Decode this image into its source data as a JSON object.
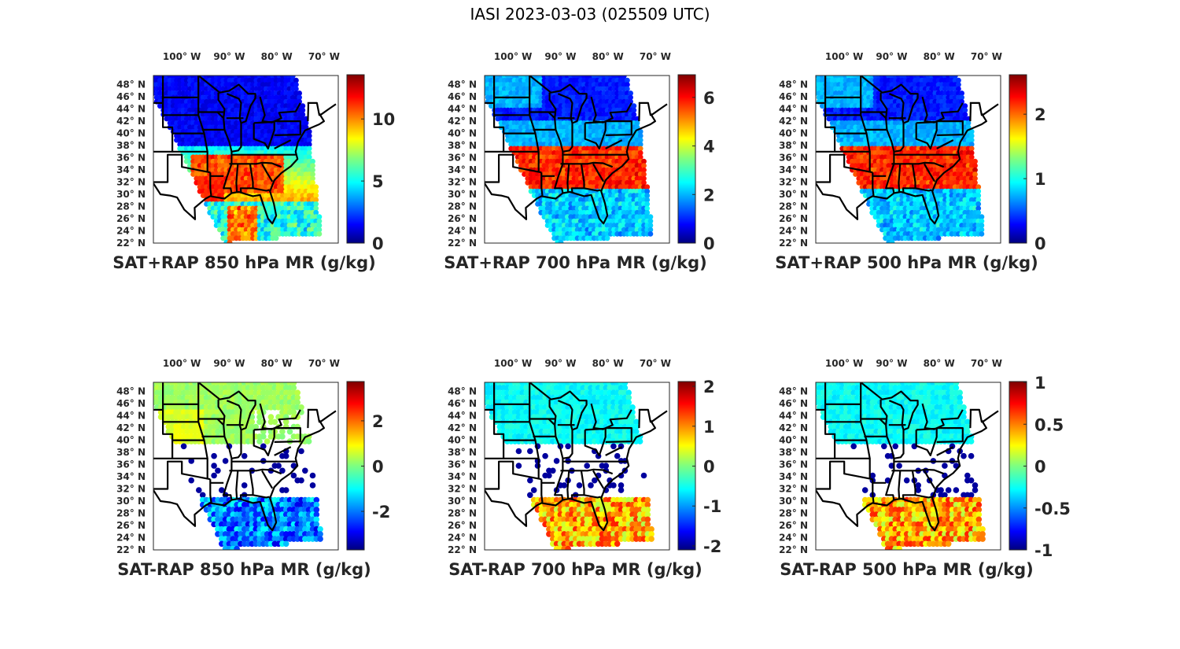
{
  "title": "IASI 2023-03-03 (025509 UTC)",
  "chart_data": [
    {
      "type": "heatmap",
      "title": "",
      "xlabel": "SAT+RAP 850 hPa MR (g/kg)",
      "lon_ticks": [
        "100° W",
        "90° W",
        "80° W",
        "70° W"
      ],
      "lat_ticks": [
        "48° N",
        "46° N",
        "44° N",
        "42° N",
        "40° N",
        "38° N",
        "36° N",
        "34° N",
        "32° N",
        "30° N",
        "28° N",
        "26° N",
        "24° N",
        "22° N"
      ],
      "colorbar": {
        "ticks": [
          0,
          5,
          10
        ],
        "range": [
          0,
          13.5
        ],
        "colormap": "jet"
      },
      "pattern": "moist-south"
    },
    {
      "type": "heatmap",
      "title": "",
      "xlabel": "SAT+RAP 700 hPa MR (g/kg)",
      "lon_ticks": [
        "100° W",
        "90° W",
        "80° W",
        "70° W"
      ],
      "lat_ticks": [
        "48° N",
        "46° N",
        "44° N",
        "42° N",
        "40° N",
        "38° N",
        "36° N",
        "34° N",
        "32° N",
        "30° N",
        "28° N",
        "26° N",
        "24° N",
        "22° N"
      ],
      "colorbar": {
        "ticks": [
          0,
          2,
          4,
          6
        ],
        "range": [
          0,
          6.9
        ],
        "colormap": "jet"
      },
      "pattern": "moist-band"
    },
    {
      "type": "heatmap",
      "title": "",
      "xlabel": "SAT+RAP 500 hPa MR (g/kg)",
      "lon_ticks": [
        "100° W",
        "90° W",
        "80° W",
        "70° W"
      ],
      "lat_ticks": [
        "48° N",
        "46° N",
        "44° N",
        "42° N",
        "40° N",
        "38° N",
        "36° N",
        "34° N",
        "32° N",
        "30° N",
        "28° N",
        "26° N",
        "24° N",
        "22° N"
      ],
      "colorbar": {
        "ticks": [
          0,
          1,
          2
        ],
        "range": [
          0,
          2.6
        ],
        "colormap": "jet"
      },
      "pattern": "moist-band"
    },
    {
      "type": "heatmap",
      "title": "",
      "xlabel": "SAT-RAP 850 hPa MR (g/kg)",
      "lon_ticks": [
        "100° W",
        "90° W",
        "80° W",
        "70° W"
      ],
      "lat_ticks": [
        "48° N",
        "46° N",
        "44° N",
        "42° N",
        "40° N",
        "38° N",
        "36° N",
        "34° N",
        "32° N",
        "30° N",
        "28° N",
        "26° N",
        "24° N",
        "22° N"
      ],
      "colorbar": {
        "ticks": [
          -2,
          0,
          2
        ],
        "range": [
          -3.7,
          3.7
        ],
        "colormap": "jet"
      },
      "pattern": "diff-850"
    },
    {
      "type": "heatmap",
      "title": "",
      "xlabel": "SAT-RAP 700 hPa MR (g/kg)",
      "lon_ticks": [
        "100° W",
        "90° W",
        "80° W",
        "70° W"
      ],
      "lat_ticks": [
        "48° N",
        "46° N",
        "44° N",
        "42° N",
        "40° N",
        "38° N",
        "36° N",
        "34° N",
        "32° N",
        "30° N",
        "28° N",
        "26° N",
        "24° N",
        "22° N"
      ],
      "colorbar": {
        "ticks": [
          -2,
          -1,
          0,
          1,
          2
        ],
        "range": [
          -2.1,
          2.1
        ],
        "colormap": "jet"
      },
      "pattern": "diff-700"
    },
    {
      "type": "heatmap",
      "title": "",
      "xlabel": "SAT-RAP 500 hPa MR (g/kg)",
      "lon_ticks": [
        "100° W",
        "90° W",
        "80° W",
        "70° W"
      ],
      "lat_ticks": [
        "48° N",
        "46° N",
        "44° N",
        "42° N",
        "40° N",
        "38° N",
        "36° N",
        "34° N",
        "32° N",
        "30° N",
        "28° N",
        "26° N",
        "24° N",
        "22° N"
      ],
      "colorbar": {
        "ticks": [
          -1,
          -0.5,
          0,
          0.5,
          1
        ],
        "tick_labels": [
          "-1",
          "-0.5",
          "0",
          "0.5",
          "1"
        ],
        "range": [
          -1,
          1
        ],
        "colormap": "jet"
      },
      "pattern": "diff-500"
    }
  ]
}
